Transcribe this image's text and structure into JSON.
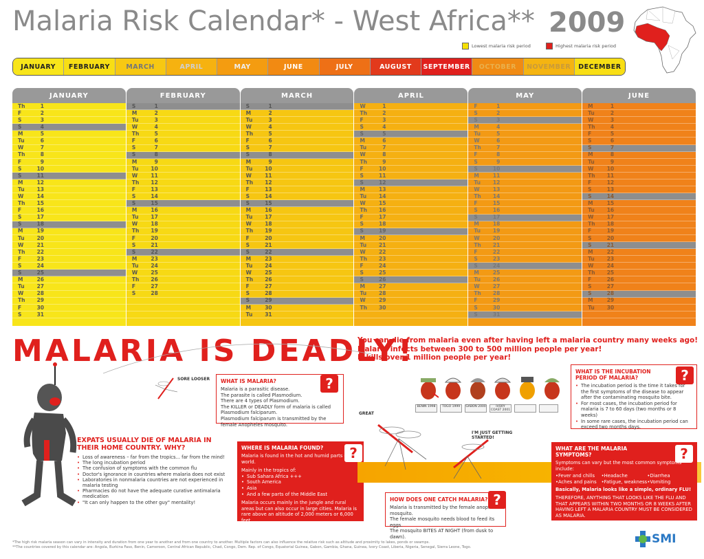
{
  "title": "Malaria Risk Calendar* - West Africa**",
  "year": "2009",
  "legend": {
    "low_label": "Lowest malaria risk period",
    "high_label": "Highest malaria risk period",
    "low_color": "#f5e000",
    "high_color": "#e0201d"
  },
  "monthbar": [
    {
      "label": "JANUARY",
      "bg": "#f8e51a",
      "fg": "#222"
    },
    {
      "label": "FEBRUARY",
      "bg": "#f8de14",
      "fg": "#222"
    },
    {
      "label": "MARCH",
      "bg": "#f7c812",
      "fg": "#777"
    },
    {
      "label": "APRIL",
      "bg": "#f6b210",
      "fg": "#cfcfcf"
    },
    {
      "label": "MAY",
      "bg": "#f49c10",
      "fg": "#eee"
    },
    {
      "label": "JUNE",
      "bg": "#f28a12",
      "fg": "#fff"
    },
    {
      "label": "JULY",
      "bg": "#ee7016",
      "fg": "#fff"
    },
    {
      "label": "AUGUST",
      "bg": "#e23a1c",
      "fg": "#fff"
    },
    {
      "label": "SEPTEMBER",
      "bg": "#e0201d",
      "fg": "#fff"
    },
    {
      "label": "OCTOBER",
      "bg": "#f08b14",
      "fg": "#e9b04c"
    },
    {
      "label": "NOVEMBER",
      "bg": "#f5b411",
      "fg": "#c99a3a"
    },
    {
      "label": "DECEMBER",
      "bg": "#f8de14",
      "fg": "#222"
    }
  ],
  "calendar": [
    {
      "month": "JANUARY",
      "color": "#f8e51a",
      "fg": "#555",
      "days": [
        [
          "Th",
          "1"
        ],
        [
          "F",
          "2"
        ],
        [
          "S",
          "3"
        ],
        [
          "S",
          "4"
        ],
        [
          "M",
          "5"
        ],
        [
          "Tu",
          "6"
        ],
        [
          "W",
          "7"
        ],
        [
          "Th",
          "8"
        ],
        [
          "F",
          "9"
        ],
        [
          "S",
          "10"
        ],
        [
          "S",
          "11"
        ],
        [
          "M",
          "12"
        ],
        [
          "Tu",
          "13"
        ],
        [
          "W",
          "14"
        ],
        [
          "Th",
          "15"
        ],
        [
          "F",
          "16"
        ],
        [
          "S",
          "17"
        ],
        [
          "S",
          "18"
        ],
        [
          "M",
          "19"
        ],
        [
          "Tu",
          "20"
        ],
        [
          "W",
          "21"
        ],
        [
          "Th",
          "22"
        ],
        [
          "F",
          "23"
        ],
        [
          "S",
          "24"
        ],
        [
          "S",
          "25"
        ],
        [
          "M",
          "26"
        ],
        [
          "Tu",
          "27"
        ],
        [
          "W",
          "28"
        ],
        [
          "Th",
          "29"
        ],
        [
          "F",
          "30"
        ],
        [
          "S",
          "31"
        ]
      ],
      "sundays": [
        "4",
        "11",
        "18",
        "25"
      ]
    },
    {
      "month": "FEBRUARY",
      "color": "#f7d914",
      "fg": "#555",
      "days": [
        [
          "S",
          "1"
        ],
        [
          "M",
          "2"
        ],
        [
          "Tu",
          "3"
        ],
        [
          "W",
          "4"
        ],
        [
          "Th",
          "5"
        ],
        [
          "F",
          "6"
        ],
        [
          "S",
          "7"
        ],
        [
          "S",
          "8"
        ],
        [
          "M",
          "9"
        ],
        [
          "Tu",
          "10"
        ],
        [
          "W",
          "11"
        ],
        [
          "Th",
          "12"
        ],
        [
          "F",
          "13"
        ],
        [
          "S",
          "14"
        ],
        [
          "S",
          "15"
        ],
        [
          "M",
          "16"
        ],
        [
          "Tu",
          "17"
        ],
        [
          "W",
          "18"
        ],
        [
          "Th",
          "19"
        ],
        [
          "F",
          "20"
        ],
        [
          "S",
          "21"
        ],
        [
          "S",
          "22"
        ],
        [
          "M",
          "23"
        ],
        [
          "Tu",
          "24"
        ],
        [
          "W",
          "25"
        ],
        [
          "Th",
          "26"
        ],
        [
          "F",
          "27"
        ],
        [
          "S",
          "28"
        ]
      ],
      "sundays": [
        "1",
        "8",
        "15",
        "22"
      ]
    },
    {
      "month": "MARCH",
      "color": "#f6c612",
      "fg": "#555",
      "days": [
        [
          "S",
          "1"
        ],
        [
          "M",
          "2"
        ],
        [
          "Tu",
          "3"
        ],
        [
          "W",
          "4"
        ],
        [
          "Th",
          "5"
        ],
        [
          "F",
          "6"
        ],
        [
          "S",
          "7"
        ],
        [
          "S",
          "8"
        ],
        [
          "M",
          "9"
        ],
        [
          "Tu",
          "10"
        ],
        [
          "W",
          "11"
        ],
        [
          "Th",
          "12"
        ],
        [
          "F",
          "13"
        ],
        [
          "S",
          "14"
        ],
        [
          "S",
          "15"
        ],
        [
          "M",
          "16"
        ],
        [
          "Tu",
          "17"
        ],
        [
          "W",
          "18"
        ],
        [
          "Th",
          "19"
        ],
        [
          "F",
          "20"
        ],
        [
          "S",
          "21"
        ],
        [
          "S",
          "22"
        ],
        [
          "M",
          "23"
        ],
        [
          "Tu",
          "24"
        ],
        [
          "W",
          "25"
        ],
        [
          "Th",
          "26"
        ],
        [
          "F",
          "27"
        ],
        [
          "S",
          "28"
        ],
        [
          "S",
          "29"
        ],
        [
          "M",
          "30"
        ],
        [
          "Tu",
          "31"
        ]
      ],
      "sundays": [
        "1",
        "8",
        "15",
        "22",
        "29"
      ]
    },
    {
      "month": "APRIL",
      "color": "#f5b012",
      "fg": "#666",
      "days": [
        [
          "W",
          "1"
        ],
        [
          "Th",
          "2"
        ],
        [
          "F",
          "3"
        ],
        [
          "S",
          "4"
        ],
        [
          "S",
          "5"
        ],
        [
          "M",
          "6"
        ],
        [
          "Tu",
          "7"
        ],
        [
          "W",
          "8"
        ],
        [
          "Th",
          "9"
        ],
        [
          "F",
          "10"
        ],
        [
          "S",
          "11"
        ],
        [
          "S",
          "12"
        ],
        [
          "M",
          "13"
        ],
        [
          "Tu",
          "14"
        ],
        [
          "W",
          "15"
        ],
        [
          "Th",
          "16"
        ],
        [
          "F",
          "17"
        ],
        [
          "S",
          "18"
        ],
        [
          "S",
          "19"
        ],
        [
          "M",
          "20"
        ],
        [
          "Tu",
          "21"
        ],
        [
          "W",
          "22"
        ],
        [
          "Th",
          "23"
        ],
        [
          "F",
          "24"
        ],
        [
          "S",
          "25"
        ],
        [
          "S",
          "26"
        ],
        [
          "M",
          "27"
        ],
        [
          "Tu",
          "28"
        ],
        [
          "W",
          "29"
        ],
        [
          "Th",
          "30"
        ]
      ],
      "sundays": [
        "5",
        "12",
        "19",
        "26"
      ]
    },
    {
      "month": "MAY",
      "color": "#f39a14",
      "fg": "#777",
      "days": [
        [
          "F",
          "1"
        ],
        [
          "S",
          "2"
        ],
        [
          "S",
          "3"
        ],
        [
          "M",
          "4"
        ],
        [
          "Tu",
          "5"
        ],
        [
          "W",
          "6"
        ],
        [
          "Th",
          "7"
        ],
        [
          "F",
          "8"
        ],
        [
          "S",
          "9"
        ],
        [
          "S",
          "10"
        ],
        [
          "M",
          "11"
        ],
        [
          "Tu",
          "12"
        ],
        [
          "W",
          "13"
        ],
        [
          "Th",
          "14"
        ],
        [
          "F",
          "15"
        ],
        [
          "S",
          "16"
        ],
        [
          "S",
          "17"
        ],
        [
          "M",
          "18"
        ],
        [
          "Tu",
          "19"
        ],
        [
          "W",
          "20"
        ],
        [
          "Th",
          "21"
        ],
        [
          "F",
          "22"
        ],
        [
          "S",
          "23"
        ],
        [
          "S",
          "24"
        ],
        [
          "M",
          "25"
        ],
        [
          "Tu",
          "26"
        ],
        [
          "W",
          "27"
        ],
        [
          "Th",
          "28"
        ],
        [
          "F",
          "29"
        ],
        [
          "S",
          "30"
        ],
        [
          "S",
          "31"
        ]
      ],
      "sundays": [
        "3",
        "10",
        "17",
        "24",
        "31"
      ]
    },
    {
      "month": "JUNE",
      "color": "#f0821a",
      "fg": "#8a5a30",
      "days": [
        [
          "M",
          "1"
        ],
        [
          "Tu",
          "2"
        ],
        [
          "W",
          "3"
        ],
        [
          "Th",
          "4"
        ],
        [
          "F",
          "5"
        ],
        [
          "S",
          "6"
        ],
        [
          "S",
          "7"
        ],
        [
          "M",
          "8"
        ],
        [
          "Tu",
          "9"
        ],
        [
          "W",
          "10"
        ],
        [
          "Th",
          "11"
        ],
        [
          "F",
          "12"
        ],
        [
          "S",
          "13"
        ],
        [
          "S",
          "14"
        ],
        [
          "M",
          "15"
        ],
        [
          "Tu",
          "16"
        ],
        [
          "W",
          "17"
        ],
        [
          "Th",
          "18"
        ],
        [
          "F",
          "19"
        ],
        [
          "S",
          "20"
        ],
        [
          "S",
          "21"
        ],
        [
          "M",
          "22"
        ],
        [
          "Tu",
          "23"
        ],
        [
          "W",
          "24"
        ],
        [
          "Th",
          "25"
        ],
        [
          "F",
          "26"
        ],
        [
          "S",
          "27"
        ],
        [
          "S",
          "28"
        ],
        [
          "M",
          "29"
        ],
        [
          "Tu",
          "30"
        ]
      ],
      "sundays": [
        "7",
        "14",
        "21",
        "28"
      ]
    }
  ],
  "deadly": "MALARIA IS DEADLY!",
  "subhead": [
    "You can die from malaria even after having left a malaria country many weeks ago!",
    "Malaria infects between 300 to 500 million people per year!",
    "It kills over 1 million people per year!"
  ],
  "cartoon_labels": {
    "sore_looser": "SORE LOOSER",
    "great": "GREAT",
    "getting_started": "I'M JUST GETTING STARTED!"
  },
  "what_is": {
    "title": "What is malaria?",
    "lines": [
      "Malaria is a parasitic disease.",
      "The parasite is called Plasmodium.",
      "There are 4 types of Plasmodium.",
      "The KILLER or DEADLY form of malaria is called Plasmodium falciparum.",
      "Plasmodium falciparum is transmitted by the female Anopheles mosquito."
    ]
  },
  "where": {
    "title": "Where is malaria found?",
    "intro": "Malaria is found in the hot and humid parts of the world.",
    "mainly": "Mainly in the tropics of:",
    "items": [
      "Sub Sahara Africa +++",
      "South America",
      "Asia",
      "And a few parts of the Middle East"
    ],
    "outro": "Malaria occurs mainly in the jungle and rural areas but can also occur in large cities. Malaria is rare above an altitude of 2,000 meters or 6,000 feet."
  },
  "how": {
    "title": "How does one catch malaria?",
    "lines": [
      "Malaria is transmitted by the female anopheles mosquito.",
      "The female mosquito needs blood to feed its eggs.",
      "The mosquito BITES AT NIGHT (from dusk to dawn)."
    ]
  },
  "incubation": {
    "title": "What is the incubation period of malaria?",
    "items": [
      "The incubation period is the time it takes for the first symptoms of the disease to appear after the contaminating mosquito bite.",
      "For most cases, the incubation period for malaria is 7 to 60 days (two months or 8 weeks)",
      "In some rare cases, the incubation period can exceed two months days."
    ]
  },
  "symptoms": {
    "title": "What are the malaria symptoms?",
    "intro": "Symptoms can vary but the most common symptoms include:",
    "items": [
      "•Fever and chills",
      "•Headache",
      "•Diarrhea",
      "•Aches and pains",
      "•Fatigue, weakness",
      "•Vomiting"
    ],
    "basic": "Basically, Malaria looks like a simple, ordinary FLU!",
    "therefore": "THEREFORE, ANYTHING THAT LOOKS LIKE THE FLU AND THAT APPEARS WITHIN TWO MONTHS OR 8 WEEKS AFTER HAVING LEFT A MALARIA COUNTRY MUST BE CONSIDERED AS MALARIA."
  },
  "expats": {
    "title": "EXPATS USUALLY DIE OF MALARIA IN THEIR HOME COUNTRY. WHY?",
    "items": [
      "Loss of awareness – far from the tropics... far from the mind!",
      "The long incubation period",
      "The confusion of symptoms with the common flu",
      "Doctor's ignorance in countries where malaria does not exist",
      "Laboratories in nonmalaria countries are not experienced in malaria testing",
      "Pharmacies do not have the adequate curative antimalaria medication",
      "\"It can only happen to the other guy\" mentality!"
    ]
  },
  "plaques": [
    "BENIN 1998",
    "TOGO 1999",
    "GABON 2000",
    "IVORY COAST 2001",
    "",
    ""
  ],
  "question_mark": "?",
  "footnotes": [
    "*The high risk malaria season can vary in intensity and duration from one year to another and from one country to another. Multiple factors can also influence the relative risk such as altitude and proximity to lakes, ponds or swamps.",
    "**The countries covered by this calendar are: Angola, Burkina Faso, Benin, Cameroon, Central African Republic, Chad, Congo, Dem. Rep. of Congo, Equatorial Guinea, Gabon, Gambia, Ghana, Guinea, Ivory Coast, Liberia, Nigeria, Senegal, Sierra Leone, Togo."
  ],
  "logo": "SMI"
}
